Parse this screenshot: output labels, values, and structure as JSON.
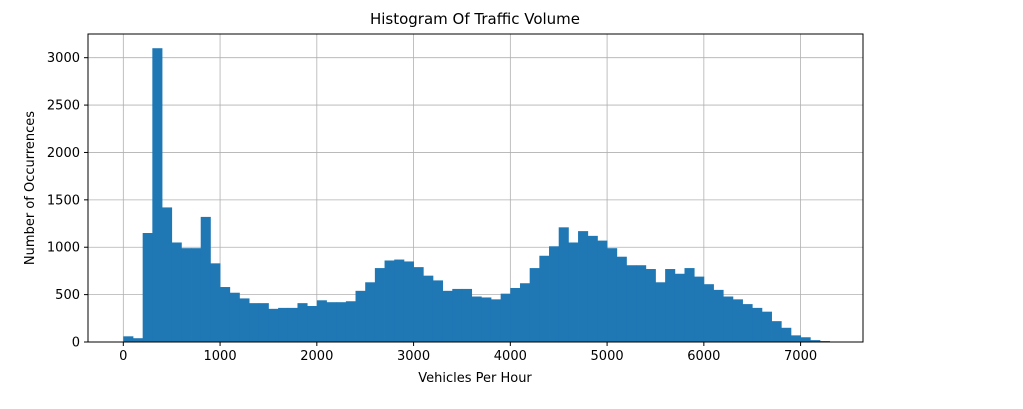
{
  "chart_data": {
    "type": "bar",
    "title": "Histogram Of Traffic Volume",
    "xlabel": "Vehicles Per Hour",
    "ylabel": "Number of Occurrences",
    "xlim": [
      -365,
      7645
    ],
    "ylim": [
      0,
      3250
    ],
    "xticks": [
      0,
      1000,
      2000,
      3000,
      4000,
      5000,
      6000,
      7000
    ],
    "yticks": [
      0,
      500,
      1000,
      1500,
      2000,
      2500,
      3000
    ],
    "grid": true,
    "color": "#1f77b4",
    "bin_start": 0,
    "bin_width": 100,
    "values": [
      60,
      40,
      1150,
      3100,
      1420,
      1050,
      990,
      990,
      1320,
      830,
      580,
      520,
      460,
      410,
      410,
      350,
      360,
      360,
      410,
      380,
      440,
      420,
      420,
      430,
      540,
      630,
      780,
      860,
      870,
      850,
      790,
      700,
      650,
      540,
      560,
      560,
      480,
      470,
      450,
      510,
      570,
      620,
      780,
      910,
      1010,
      1210,
      1050,
      1170,
      1120,
      1070,
      990,
      900,
      810,
      810,
      770,
      630,
      770,
      720,
      780,
      690,
      610,
      550,
      480,
      450,
      400,
      360,
      320,
      220,
      150,
      70,
      50,
      20,
      10,
      0
    ]
  }
}
